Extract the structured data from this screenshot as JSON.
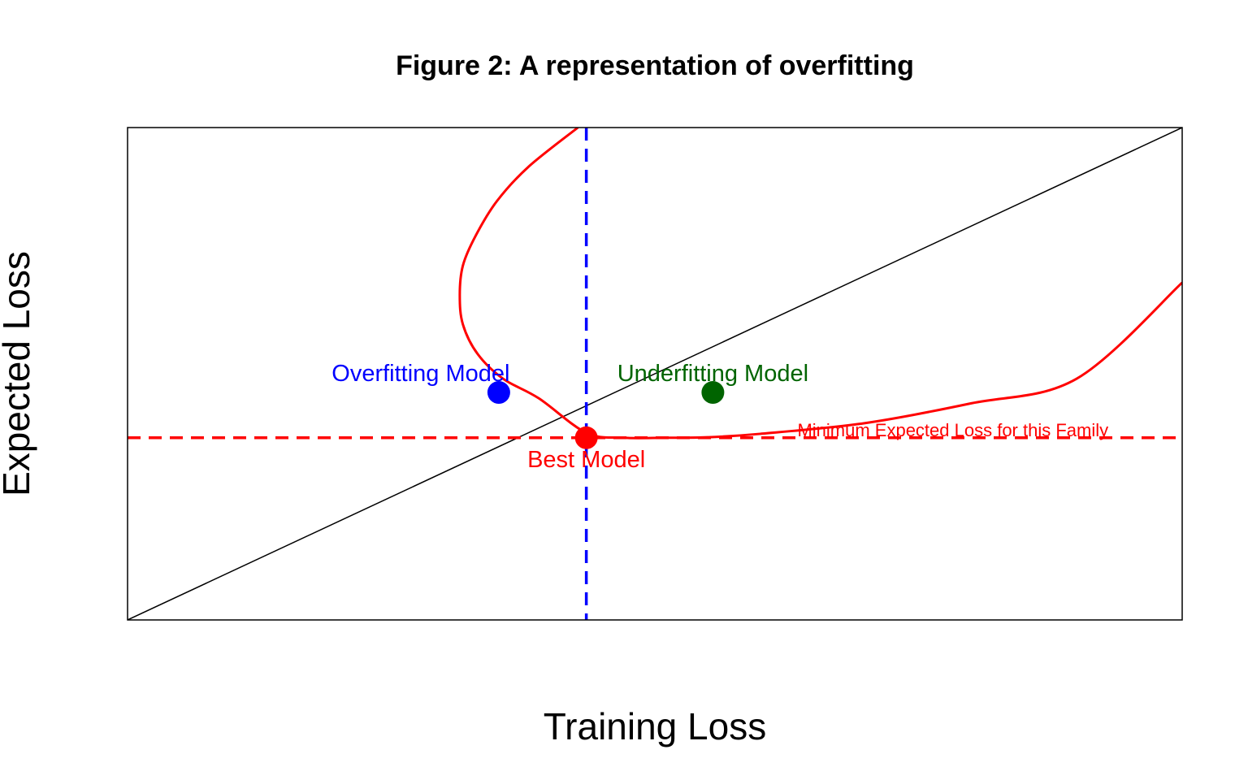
{
  "chart_data": {
    "type": "line",
    "title": "Figure 2: A representation of overfitting",
    "xlabel": "Training Loss",
    "ylabel": "Expected Loss",
    "xlim": [
      0,
      1
    ],
    "ylim": [
      0,
      1
    ],
    "axes_ticks": false,
    "grid": false,
    "series": [
      {
        "role": "identity-line",
        "color": "#000000",
        "points": [
          [
            0,
            0
          ],
          [
            1,
            1
          ]
        ]
      },
      {
        "role": "family-curve",
        "color": "#ff0000",
        "points": [
          [
            0.427,
            1.0
          ],
          [
            0.38,
            0.92
          ],
          [
            0.35,
            0.85
          ],
          [
            0.33,
            0.78
          ],
          [
            0.318,
            0.72
          ],
          [
            0.315,
            0.66
          ],
          [
            0.318,
            0.6
          ],
          [
            0.332,
            0.54
          ],
          [
            0.356,
            0.49
          ],
          [
            0.39,
            0.45
          ],
          [
            0.435,
            0.38
          ],
          [
            0.47,
            0.37
          ],
          [
            0.51,
            0.37
          ],
          [
            0.55,
            0.371
          ],
          [
            0.6,
            0.378
          ],
          [
            0.7,
            0.4
          ],
          [
            0.8,
            0.44
          ],
          [
            0.9,
            0.49
          ],
          [
            1.0,
            0.685
          ]
        ]
      }
    ],
    "reference_lines": [
      {
        "orientation": "horizontal",
        "value": 0.37,
        "color": "#ff0000",
        "style": "dashed",
        "label": "Minimum Expected Loss for this Family"
      },
      {
        "orientation": "vertical",
        "value": 0.435,
        "color": "#0000ff",
        "style": "dashed"
      }
    ],
    "points": [
      {
        "label": "Overfitting Model",
        "x": 0.352,
        "y": 0.462,
        "color": "#0000ff"
      },
      {
        "label": "Underfitting Model",
        "x": 0.555,
        "y": 0.462,
        "color": "#006400"
      },
      {
        "label": "Best Model",
        "x": 0.435,
        "y": 0.37,
        "color": "#ff0000"
      }
    ]
  }
}
